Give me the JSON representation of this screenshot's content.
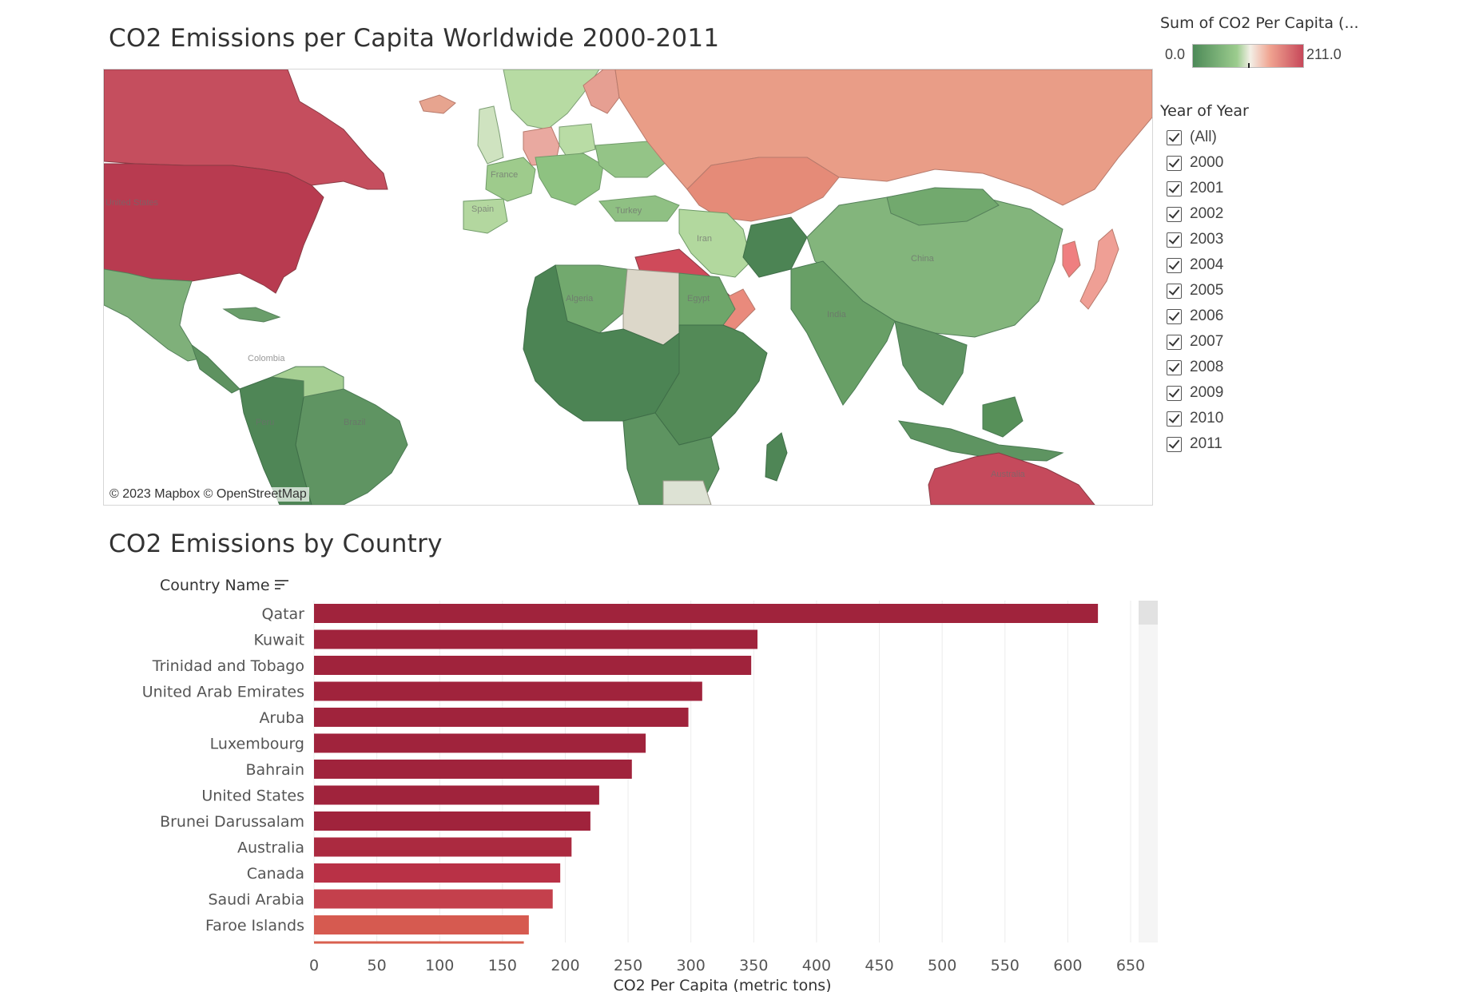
{
  "map": {
    "title": "CO2 Emissions per Capita Worldwide 2000-2011",
    "attribution": "© 2023 Mapbox  © OpenStreetMap",
    "map_labels": [
      "United States",
      "France",
      "Spain",
      "Algeria",
      "Egypt",
      "Turkey",
      "Iran",
      "India",
      "China",
      "Colombia",
      "Brazil",
      "Peru",
      "Australia"
    ],
    "colors": {
      "low": "#4d8a58",
      "mid": "#f3efe6",
      "high": "#c7485a"
    }
  },
  "legend": {
    "title": "Sum of CO2 Per Capita (...",
    "min": "0.0",
    "max": "211.0"
  },
  "year_filter": {
    "title": "Year of Year",
    "items": [
      "(All)",
      "2000",
      "2001",
      "2002",
      "2003",
      "2004",
      "2005",
      "2006",
      "2007",
      "2008",
      "2009",
      "2010",
      "2011"
    ]
  },
  "chart_data": {
    "type": "bar",
    "orientation": "horizontal",
    "title": "CO2 Emissions by Country",
    "ylabel": "Country Name",
    "xlabel": "CO2 Per Capita (metric tons)",
    "categories": [
      "Qatar",
      "Kuwait",
      "Trinidad and Tobago",
      "United Arab Emirates",
      "Aruba",
      "Luxembourg",
      "Bahrain",
      "United States",
      "Brunei Darussalam",
      "Australia",
      "Canada",
      "Saudi Arabia",
      "Faroe Islands"
    ],
    "values": [
      624,
      353,
      348,
      309,
      298,
      264,
      253,
      227,
      220,
      205,
      196,
      190,
      171
    ],
    "partial_next_value": 167,
    "xlim": [
      0,
      650
    ],
    "xticks": [
      0,
      50,
      100,
      150,
      200,
      250,
      300,
      350,
      400,
      450,
      500,
      550,
      600,
      650
    ],
    "grid": true,
    "colors": [
      "#a0233c",
      "#a0233c",
      "#a0233c",
      "#a0233c",
      "#a0233c",
      "#a0233c",
      "#a0233c",
      "#a0233c",
      "#a0233c",
      "#ab2a40",
      "#b93146",
      "#c4404c",
      "#d65a50"
    ]
  }
}
